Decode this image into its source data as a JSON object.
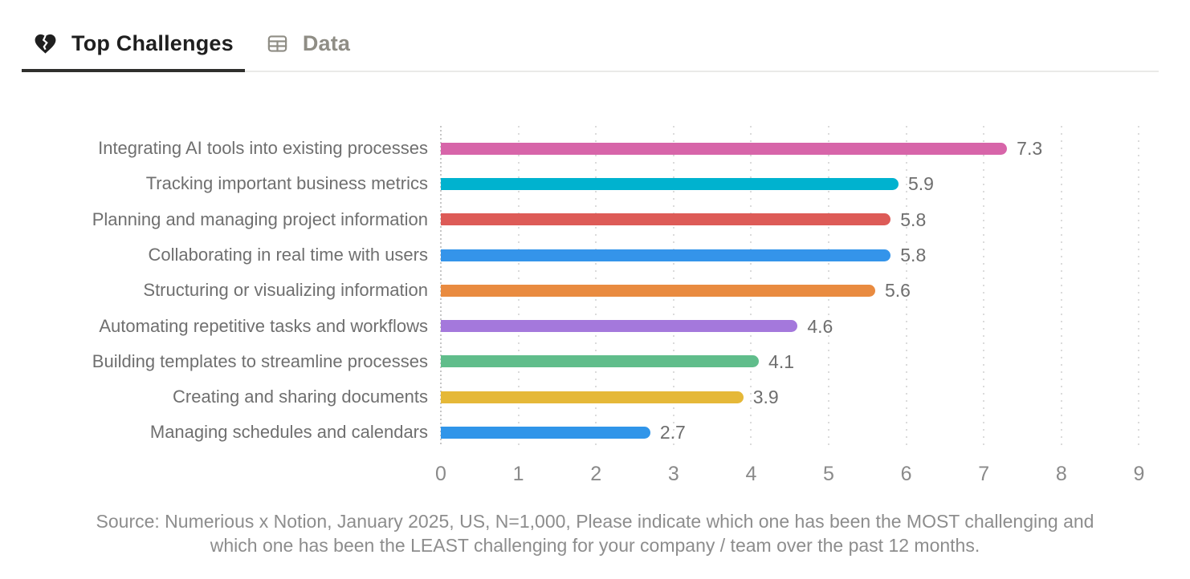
{
  "tabs": [
    {
      "label": "Top Challenges",
      "icon": "broken-heart-icon",
      "active": true
    },
    {
      "label": "Data",
      "icon": "table-icon",
      "active": false
    }
  ],
  "chart_data": {
    "type": "bar",
    "orientation": "horizontal",
    "title": "",
    "xlabel": "",
    "ylabel": "",
    "xlim": [
      0,
      9
    ],
    "grid": "dotted-vertical",
    "legend": "none",
    "categories": [
      "Integrating AI tools into existing processes",
      "Tracking important business metrics",
      "Planning and managing project information",
      "Collaborating in real time with users",
      "Structuring or visualizing information",
      "Automating repetitive tasks and workflows",
      "Building templates to streamline processes",
      "Creating and sharing documents",
      "Managing schedules and calendars"
    ],
    "values": [
      7.3,
      5.9,
      5.8,
      5.8,
      5.6,
      4.6,
      4.1,
      3.9,
      2.7
    ],
    "value_labels": [
      "7.3",
      "5.9",
      "5.8",
      "5.8",
      "5.6",
      "4.6",
      "4.1",
      "3.9",
      "2.7"
    ],
    "bar_colors": [
      "#d765a9",
      "#00b2cf",
      "#dd5b57",
      "#3494ea",
      "#e98b40",
      "#a478dc",
      "#60bd8b",
      "#e5b838",
      "#3095e9"
    ],
    "x_tick_labels": [
      "0",
      "1",
      "2",
      "3",
      "4",
      "5",
      "6",
      "7",
      "8",
      "9"
    ],
    "source_lines": [
      "Source: Numerious x Notion, January 2025, US, N=1,000, Please indicate which one has been the MOST challenging and",
      "which one has been the LEAST challenging for your company /  team over the past 12 months."
    ]
  },
  "colors": {
    "active_tab_text": "#1f1f1f",
    "inactive_tab_text": "#8f8d85",
    "active_tab_underline": "#2f2f2d",
    "tabbar_line": "#eaeae8",
    "category_label_text": "#6f6f6f",
    "value_label_text": "#6e6e6e",
    "tick_label_text": "#8a8a8a",
    "source_text": "#8d8d8d",
    "gridline": "#dbdbdb",
    "axis_line": "#c6c6c6",
    "background": "#ffffff"
  }
}
